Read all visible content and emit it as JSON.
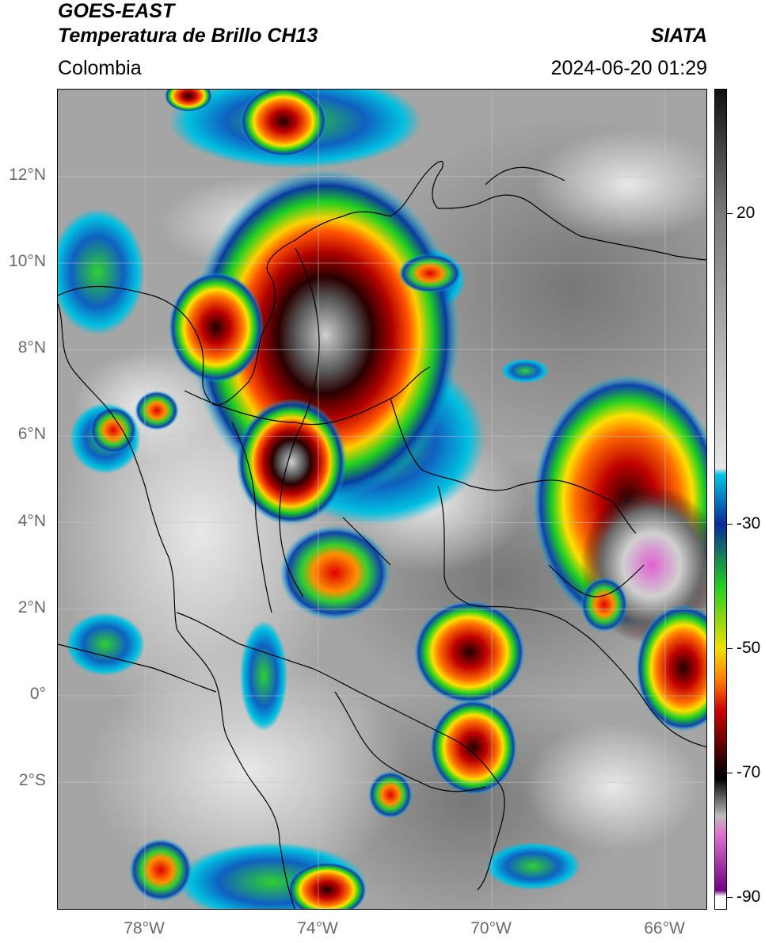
{
  "header": {
    "satellite": "GOES-EAST",
    "product": "Temperatura de Brillo CH13",
    "agency": "SIATA",
    "region": "Colombia",
    "datetime": "2024-06-20 01:29"
  },
  "map": {
    "lat_labels": [
      {
        "lat": 12,
        "text": "12°N"
      },
      {
        "lat": 10,
        "text": "10°N"
      },
      {
        "lat": 8,
        "text": "8°N"
      },
      {
        "lat": 6,
        "text": "6°N"
      },
      {
        "lat": 4,
        "text": "4°N"
      },
      {
        "lat": 2,
        "text": "2°N"
      },
      {
        "lat": 0,
        "text": "0°"
      },
      {
        "lat": -2,
        "text": "2°S"
      }
    ],
    "lon_labels": [
      {
        "lon": -78,
        "text": "78°W"
      },
      {
        "lon": -74,
        "text": "74°W"
      },
      {
        "lon": -70,
        "text": "70°W"
      },
      {
        "lon": -66,
        "text": "66°W"
      }
    ],
    "lon_range": [
      -80,
      -65
    ],
    "lat_range": [
      -5,
      14
    ],
    "grid": true
  },
  "colorbar": {
    "unit_values": [
      "20",
      "-30",
      "-50",
      "-70",
      "-90"
    ],
    "ticks": [
      {
        "value": 20,
        "label": "20"
      },
      {
        "value": -30,
        "label": "-30"
      },
      {
        "value": -50,
        "label": "-50"
      },
      {
        "value": -70,
        "label": "-70"
      },
      {
        "value": -90,
        "label": "-90"
      }
    ],
    "range": [
      -92,
      40
    ],
    "colors": {
      "warm_top": "#111111",
      "warm_bottom": "#e6e6e6",
      "cyan": "#00c8e6",
      "blue": "#0a2a9a",
      "green": "#20d020",
      "yellow": "#f0e000",
      "orange": "#ff8000",
      "red": "#d00000",
      "darkred": "#300000",
      "magenta": "#e070d0",
      "purple": "#700080"
    }
  }
}
